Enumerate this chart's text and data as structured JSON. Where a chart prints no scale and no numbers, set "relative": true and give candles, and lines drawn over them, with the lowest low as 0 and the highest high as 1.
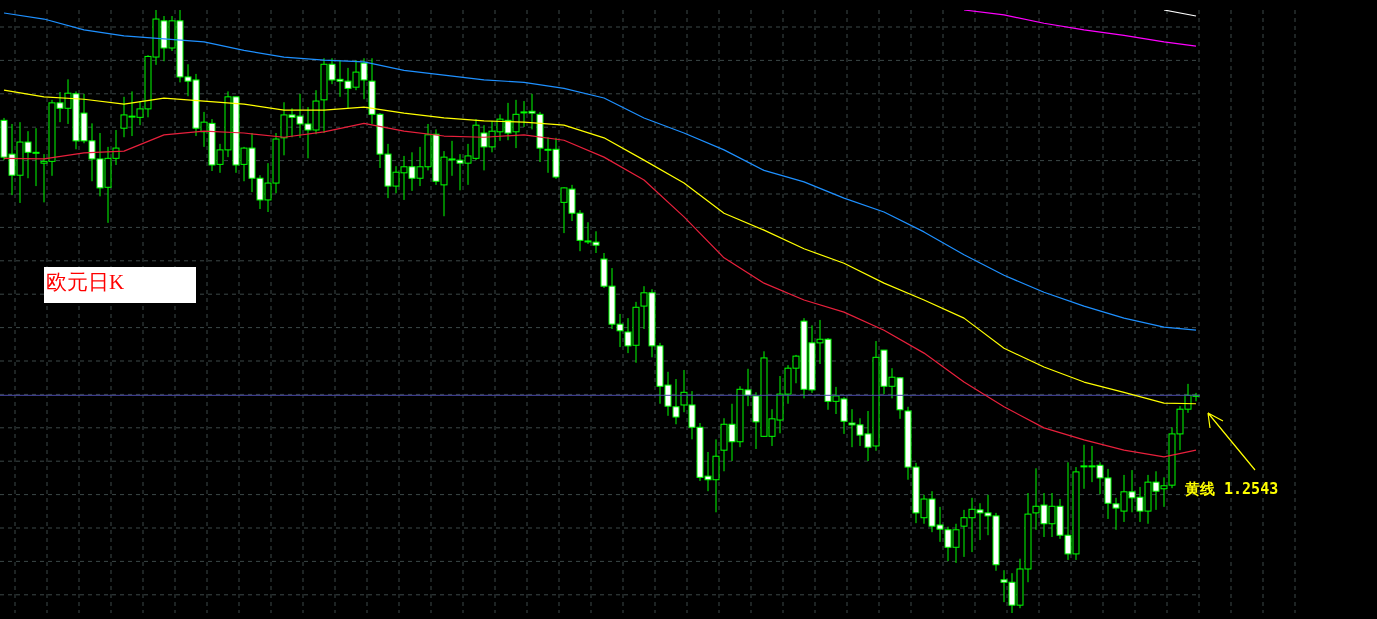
{
  "chart_data": {
    "type": "candlestick",
    "relative": true,
    "grid": true,
    "color": "#00ff00",
    "categories": [
      null,
      null,
      null,
      null,
      null,
      null,
      null,
      null,
      null,
      null,
      null,
      null,
      null,
      null,
      null,
      null,
      null,
      null,
      null,
      null,
      null,
      null,
      null,
      null,
      null,
      null,
      null,
      null,
      null,
      null,
      null,
      null,
      null,
      null,
      null,
      null,
      null,
      null,
      null,
      null,
      null,
      null,
      null,
      null,
      null,
      null,
      null,
      null,
      null,
      null,
      null,
      null,
      null,
      null,
      null,
      null,
      null,
      null,
      null,
      null,
      null,
      null,
      null,
      null,
      null,
      null,
      null,
      null,
      null,
      null,
      null,
      null,
      null,
      null,
      null,
      null,
      null,
      null,
      null,
      null,
      null,
      null,
      null,
      null,
      null,
      null,
      null,
      null,
      null,
      null,
      null,
      null,
      null,
      null,
      null,
      null,
      null,
      null,
      null,
      null,
      null,
      null,
      null,
      null,
      null,
      null,
      null,
      null,
      null,
      null,
      null,
      null,
      null,
      null,
      null,
      null,
      null,
      null,
      null,
      null,
      null,
      null,
      null,
      null,
      null,
      null,
      null,
      null,
      null,
      null,
      null,
      null,
      null,
      null,
      null,
      null,
      null,
      null,
      null,
      null,
      null,
      null,
      null,
      null,
      null,
      null,
      null,
      null,
      null,
      null
    ],
    "ohlc": [
      [
        0.817,
        0.821,
        0.751,
        0.756
      ],
      [
        0.761,
        0.811,
        0.693,
        0.726
      ],
      [
        0.726,
        0.814,
        0.68,
        0.781
      ],
      [
        0.781,
        0.799,
        0.721,
        0.764
      ],
      [
        0.764,
        0.804,
        0.708,
        0.764
      ],
      [
        0.746,
        0.761,
        0.681,
        0.749
      ],
      [
        0.749,
        0.851,
        0.725,
        0.846
      ],
      [
        0.846,
        0.864,
        0.814,
        0.837
      ],
      [
        0.837,
        0.885,
        0.811,
        0.862
      ],
      [
        0.861,
        0.865,
        0.769,
        0.783
      ],
      [
        0.829,
        0.861,
        0.779,
        0.783
      ],
      [
        0.783,
        0.812,
        0.716,
        0.753
      ],
      [
        0.753,
        0.796,
        0.691,
        0.705
      ],
      [
        0.706,
        0.773,
        0.647,
        0.754
      ],
      [
        0.754,
        0.801,
        0.743,
        0.771
      ],
      [
        0.804,
        0.856,
        0.789,
        0.826
      ],
      [
        0.824,
        0.865,
        0.791,
        0.824
      ],
      [
        0.822,
        0.849,
        0.809,
        0.836
      ],
      [
        0.836,
        0.925,
        0.822,
        0.923
      ],
      [
        0.922,
        1,
        0.909,
        0.985
      ],
      [
        0.982,
        0.99,
        0.915,
        0.937
      ],
      [
        0.937,
        0.99,
        0.932,
        0.982
      ],
      [
        0.982,
        1,
        0.88,
        0.889
      ],
      [
        0.889,
        0.91,
        0.857,
        0.882
      ],
      [
        0.884,
        0.894,
        0.791,
        0.804
      ],
      [
        0.798,
        0.831,
        0.773,
        0.814
      ],
      [
        0.812,
        0.819,
        0.733,
        0.743
      ],
      [
        0.744,
        0.778,
        0.73,
        0.768
      ],
      [
        0.768,
        0.865,
        0.756,
        0.856
      ],
      [
        0.856,
        0.856,
        0.73,
        0.743
      ],
      [
        0.744,
        0.773,
        0.716,
        0.771
      ],
      [
        0.771,
        0.796,
        0.698,
        0.721
      ],
      [
        0.721,
        0.726,
        0.67,
        0.685
      ],
      [
        0.685,
        0.746,
        0.665,
        0.713
      ],
      [
        0.713,
        0.796,
        0.696,
        0.786
      ],
      [
        0.788,
        0.847,
        0.759,
        0.826
      ],
      [
        0.826,
        0.837,
        0.789,
        0.822
      ],
      [
        0.824,
        0.861,
        0.788,
        0.811
      ],
      [
        0.811,
        0.839,
        0.754,
        0.801
      ],
      [
        0.801,
        0.867,
        0.794,
        0.849
      ],
      [
        0.851,
        0.92,
        0.796,
        0.91
      ],
      [
        0.91,
        0.92,
        0.877,
        0.884
      ],
      [
        0.885,
        0.917,
        0.856,
        0.882
      ],
      [
        0.882,
        0.904,
        0.837,
        0.87
      ],
      [
        0.872,
        0.917,
        0.867,
        0.897
      ],
      [
        0.912,
        0.92,
        0.852,
        0.884
      ],
      [
        0.882,
        0.92,
        0.811,
        0.827
      ],
      [
        0.827,
        0.829,
        0.738,
        0.761
      ],
      [
        0.761,
        0.778,
        0.688,
        0.708
      ],
      [
        0.708,
        0.741,
        0.696,
        0.731
      ],
      [
        0.73,
        0.758,
        0.685,
        0.74
      ],
      [
        0.74,
        0.764,
        0.7,
        0.721
      ],
      [
        0.721,
        0.773,
        0.708,
        0.74
      ],
      [
        0.74,
        0.811,
        0.734,
        0.793
      ],
      [
        0.794,
        0.802,
        0.71,
        0.716
      ],
      [
        0.71,
        0.766,
        0.658,
        0.756
      ],
      [
        0.753,
        0.783,
        0.725,
        0.753
      ],
      [
        0.751,
        0.761,
        0.701,
        0.746
      ],
      [
        0.746,
        0.778,
        0.71,
        0.758
      ],
      [
        0.754,
        0.819,
        0.751,
        0.809
      ],
      [
        0.796,
        0.809,
        0.734,
        0.773
      ],
      [
        0.773,
        0.816,
        0.764,
        0.799
      ],
      [
        0.798,
        0.827,
        0.783,
        0.819
      ],
      [
        0.817,
        0.846,
        0.784,
        0.796
      ],
      [
        0.798,
        0.851,
        0.771,
        0.827
      ],
      [
        0.831,
        0.849,
        0.806,
        0.831
      ],
      [
        0.832,
        0.861,
        0.802,
        0.829
      ],
      [
        0.827,
        0.831,
        0.748,
        0.771
      ],
      [
        0.769,
        0.789,
        0.73,
        0.769
      ],
      [
        0.769,
        0.788,
        0.72,
        0.723
      ],
      [
        0.681,
        0.706,
        0.63,
        0.705
      ],
      [
        0.703,
        0.71,
        0.65,
        0.663
      ],
      [
        0.663,
        0.668,
        0.6,
        0.618
      ],
      [
        0.617,
        0.648,
        0.612,
        0.617
      ],
      [
        0.615,
        0.633,
        0.597,
        0.61
      ],
      [
        0.587,
        0.597,
        0.539,
        0.542
      ],
      [
        0.542,
        0.572,
        0.471,
        0.479
      ],
      [
        0.479,
        0.496,
        0.441,
        0.468
      ],
      [
        0.466,
        0.489,
        0.431,
        0.443
      ],
      [
        0.444,
        0.516,
        0.415,
        0.507
      ],
      [
        0.509,
        0.542,
        0.471,
        0.531
      ],
      [
        0.531,
        0.537,
        0.424,
        0.443
      ],
      [
        0.443,
        0.448,
        0.347,
        0.376
      ],
      [
        0.378,
        0.4,
        0.327,
        0.343
      ],
      [
        0.342,
        0.388,
        0.313,
        0.325
      ],
      [
        0.345,
        0.403,
        0.333,
        0.366
      ],
      [
        0.345,
        0.368,
        0.288,
        0.308
      ],
      [
        0.308,
        0.315,
        0.219,
        0.225
      ],
      [
        0.227,
        0.267,
        0.202,
        0.221
      ],
      [
        0.221,
        0.288,
        0.167,
        0.26
      ],
      [
        0.27,
        0.323,
        0.235,
        0.313
      ],
      [
        0.313,
        0.347,
        0.252,
        0.284
      ],
      [
        0.284,
        0.376,
        0.275,
        0.371
      ],
      [
        0.37,
        0.405,
        0.343,
        0.361
      ],
      [
        0.36,
        0.366,
        0.272,
        0.317
      ],
      [
        0.293,
        0.434,
        0.292,
        0.423
      ],
      [
        0.293,
        0.338,
        0.277,
        0.322
      ],
      [
        0.32,
        0.393,
        0.298,
        0.363
      ],
      [
        0.363,
        0.411,
        0.347,
        0.406
      ],
      [
        0.406,
        0.428,
        0.381,
        0.426
      ],
      [
        0.484,
        0.489,
        0.356,
        0.371
      ],
      [
        0.448,
        0.477,
        0.365,
        0.37
      ],
      [
        0.448,
        0.486,
        0.413,
        0.454
      ],
      [
        0.454,
        0.456,
        0.337,
        0.351
      ],
      [
        0.351,
        0.375,
        0.33,
        0.36
      ],
      [
        0.355,
        0.358,
        0.297,
        0.318
      ],
      [
        0.315,
        0.338,
        0.275,
        0.312
      ],
      [
        0.312,
        0.323,
        0.277,
        0.295
      ],
      [
        0.297,
        0.335,
        0.252,
        0.275
      ],
      [
        0.277,
        0.451,
        0.269,
        0.424
      ],
      [
        0.436,
        0.436,
        0.363,
        0.376
      ],
      [
        0.376,
        0.406,
        0.356,
        0.391
      ],
      [
        0.39,
        0.391,
        0.322,
        0.337
      ],
      [
        0.335,
        0.342,
        0.221,
        0.242
      ],
      [
        0.242,
        0.249,
        0.149,
        0.166
      ],
      [
        0.158,
        0.196,
        0.148,
        0.189
      ],
      [
        0.189,
        0.202,
        0.134,
        0.144
      ],
      [
        0.146,
        0.176,
        0.118,
        0.139
      ],
      [
        0.138,
        0.143,
        0.086,
        0.109
      ],
      [
        0.109,
        0.148,
        0.083,
        0.138
      ],
      [
        0.144,
        0.171,
        0.093,
        0.158
      ],
      [
        0.158,
        0.191,
        0.101,
        0.172
      ],
      [
        0.171,
        0.182,
        0.121,
        0.166
      ],
      [
        0.166,
        0.196,
        0.129,
        0.161
      ],
      [
        0.161,
        0.166,
        0.07,
        0.08
      ],
      [
        0.055,
        0.071,
        0.018,
        0.051
      ],
      [
        0.051,
        0.066,
        0,
        0.013
      ],
      [
        0.013,
        0.09,
        0.008,
        0.073
      ],
      [
        0.073,
        0.199,
        0.051,
        0.164
      ],
      [
        0.166,
        0.24,
        0.138,
        0.177
      ],
      [
        0.179,
        0.199,
        0.126,
        0.148
      ],
      [
        0.148,
        0.199,
        0.126,
        0.177
      ],
      [
        0.177,
        0.189,
        0.123,
        0.129
      ],
      [
        0.129,
        0.25,
        0.088,
        0.098
      ],
      [
        0.098,
        0.242,
        0.088,
        0.234
      ],
      [
        0.244,
        0.279,
        0.206,
        0.244
      ],
      [
        0.244,
        0.277,
        0.217,
        0.244
      ],
      [
        0.245,
        0.25,
        0.197,
        0.224
      ],
      [
        0.224,
        0.239,
        0.156,
        0.182
      ],
      [
        0.181,
        0.191,
        0.138,
        0.174
      ],
      [
        0.169,
        0.229,
        0.151,
        0.201
      ],
      [
        0.201,
        0.237,
        0.167,
        0.191
      ],
      [
        0.192,
        0.209,
        0.151,
        0.169
      ],
      [
        0.169,
        0.229,
        0.148,
        0.217
      ],
      [
        0.217,
        0.235,
        0.171,
        0.202
      ],
      [
        0.206,
        0.225,
        0.176,
        0.211
      ],
      [
        0.212,
        0.308,
        0.207,
        0.297
      ],
      [
        0.297,
        0.343,
        0.27,
        0.338
      ],
      [
        0.338,
        0.38,
        0.332,
        0.361
      ],
      [
        0.361,
        0.365,
        0.351,
        0.361
      ]
    ],
    "series": [
      {
        "type": "line",
        "color": "#ffff00",
        "values": [
          0.867,
          null,
          null,
          null,
          null,
          0.856,
          null,
          null,
          null,
          null,
          0.852,
          null,
          null,
          null,
          null,
          0.844,
          null,
          null,
          null,
          null,
          0.854,
          null,
          null,
          null,
          null,
          0.849,
          null,
          null,
          null,
          null,
          0.844,
          null,
          null,
          null,
          null,
          0.834,
          null,
          null,
          null,
          null,
          0.834,
          null,
          null,
          null,
          null,
          0.839,
          null,
          null,
          null,
          null,
          0.829,
          null,
          null,
          null,
          null,
          0.821,
          null,
          null,
          null,
          null,
          0.816,
          null,
          null,
          null,
          null,
          0.814,
          null,
          null,
          null,
          null,
          0.809,
          null,
          null,
          null,
          null,
          0.788,
          null,
          null,
          null,
          null,
          0.751,
          null,
          null,
          null,
          null,
          0.713,
          null,
          null,
          null,
          null,
          0.663,
          null,
          null,
          null,
          null,
          0.635,
          null,
          null,
          null,
          null,
          0.604,
          null,
          null,
          null,
          null,
          0.58,
          null,
          null,
          null,
          null,
          0.547,
          null,
          null,
          null,
          null,
          0.519,
          null,
          null,
          null,
          null,
          0.489,
          null,
          null,
          null,
          null,
          0.439,
          null,
          null,
          null,
          null,
          0.408,
          null,
          null,
          null,
          null,
          0.383,
          null,
          null,
          null,
          null,
          0.366,
          null,
          null,
          null,
          null,
          0.348,
          null,
          null,
          null,
          0.347
        ]
      },
      {
        "type": "line",
        "color": "#e8203c",
        "values": [
          0.754,
          null,
          null,
          null,
          null,
          0.753,
          null,
          null,
          null,
          null,
          0.763,
          null,
          null,
          null,
          null,
          0.766,
          null,
          null,
          null,
          null,
          0.793,
          null,
          null,
          null,
          null,
          0.799,
          null,
          null,
          null,
          null,
          0.796,
          null,
          null,
          null,
          null,
          0.789,
          null,
          null,
          null,
          null,
          0.798,
          null,
          null,
          null,
          null,
          0.812,
          null,
          null,
          null,
          null,
          0.799,
          null,
          null,
          null,
          null,
          0.791,
          null,
          null,
          null,
          null,
          0.789,
          null,
          null,
          null,
          null,
          0.793,
          null,
          null,
          null,
          null,
          0.784,
          null,
          null,
          null,
          null,
          0.756,
          null,
          null,
          null,
          null,
          0.718,
          null,
          null,
          null,
          null,
          0.657,
          null,
          null,
          null,
          null,
          0.589,
          null,
          null,
          null,
          null,
          0.547,
          null,
          null,
          null,
          null,
          0.519,
          null,
          null,
          null,
          null,
          0.499,
          null,
          null,
          null,
          null,
          0.469,
          null,
          null,
          null,
          null,
          0.431,
          null,
          null,
          null,
          null,
          0.383,
          null,
          null,
          null,
          null,
          0.342,
          null,
          null,
          null,
          null,
          0.307,
          null,
          null,
          null,
          null,
          0.287,
          null,
          null,
          null,
          null,
          0.27,
          null,
          null,
          null,
          null,
          0.259,
          null,
          null,
          null,
          0.27
        ]
      },
      {
        "type": "line",
        "color": "#1e90ff",
        "values": [
          0.995,
          null,
          null,
          null,
          null,
          0.985,
          null,
          null,
          null,
          null,
          0.967,
          null,
          null,
          null,
          null,
          0.957,
          null,
          null,
          null,
          null,
          0.952,
          null,
          null,
          null,
          null,
          0.947,
          null,
          null,
          null,
          null,
          0.933,
          null,
          null,
          null,
          null,
          0.922,
          null,
          null,
          null,
          null,
          0.917,
          null,
          null,
          null,
          null,
          0.914,
          null,
          null,
          null,
          null,
          0.9,
          null,
          null,
          null,
          null,
          0.892,
          null,
          null,
          null,
          null,
          0.884,
          null,
          null,
          null,
          null,
          0.88,
          null,
          null,
          null,
          null,
          0.87,
          null,
          null,
          null,
          null,
          0.854,
          null,
          null,
          null,
          null,
          0.821,
          null,
          null,
          null,
          null,
          0.796,
          null,
          null,
          null,
          null,
          0.768,
          null,
          null,
          null,
          null,
          0.734,
          null,
          null,
          null,
          null,
          0.715,
          null,
          null,
          null,
          null,
          0.688,
          null,
          null,
          null,
          null,
          0.665,
          null,
          null,
          null,
          null,
          0.632,
          null,
          null,
          null,
          null,
          0.594,
          null,
          null,
          null,
          null,
          0.56,
          null,
          null,
          null,
          null,
          0.532,
          null,
          null,
          null,
          null,
          0.509,
          null,
          null,
          null,
          null,
          0.489,
          null,
          null,
          null,
          null,
          0.474,
          null,
          null,
          null,
          0.469
        ]
      },
      {
        "type": "line",
        "color": "#ff00ff",
        "values": [
          null,
          null,
          null,
          null,
          null,
          null,
          null,
          null,
          null,
          null,
          null,
          null,
          null,
          null,
          null,
          null,
          null,
          null,
          null,
          null,
          null,
          null,
          null,
          null,
          null,
          null,
          null,
          null,
          null,
          null,
          null,
          null,
          null,
          null,
          null,
          null,
          null,
          null,
          null,
          null,
          null,
          null,
          null,
          null,
          null,
          null,
          null,
          null,
          null,
          null,
          null,
          null,
          null,
          null,
          null,
          null,
          null,
          null,
          null,
          null,
          null,
          null,
          null,
          null,
          null,
          null,
          null,
          null,
          null,
          null,
          null,
          null,
          null,
          null,
          null,
          null,
          null,
          null,
          null,
          null,
          null,
          null,
          null,
          null,
          null,
          null,
          null,
          null,
          null,
          null,
          null,
          null,
          null,
          null,
          null,
          null,
          null,
          null,
          null,
          null,
          null,
          null,
          null,
          null,
          null,
          null,
          null,
          null,
          null,
          null,
          null,
          null,
          null,
          null,
          null,
          null,
          null,
          null,
          null,
          null,
          1,
          null,
          null,
          null,
          null,
          0.992,
          null,
          null,
          null,
          null,
          0.978,
          null,
          null,
          null,
          null,
          0.967,
          null,
          null,
          null,
          null,
          0.958,
          null,
          null,
          null,
          null,
          0.947,
          null,
          null,
          null,
          0.94
        ]
      },
      {
        "type": "line",
        "color": "#ffffff",
        "values": [
          null,
          null,
          null,
          null,
          null,
          null,
          null,
          null,
          null,
          null,
          null,
          null,
          null,
          null,
          null,
          null,
          null,
          null,
          null,
          null,
          null,
          null,
          null,
          null,
          null,
          null,
          null,
          null,
          null,
          null,
          null,
          null,
          null,
          null,
          null,
          null,
          null,
          null,
          null,
          null,
          null,
          null,
          null,
          null,
          null,
          null,
          null,
          null,
          null,
          null,
          null,
          null,
          null,
          null,
          null,
          null,
          null,
          null,
          null,
          null,
          null,
          null,
          null,
          null,
          null,
          null,
          null,
          null,
          null,
          null,
          null,
          null,
          null,
          null,
          null,
          null,
          null,
          null,
          null,
          null,
          null,
          null,
          null,
          null,
          null,
          null,
          null,
          null,
          null,
          null,
          null,
          null,
          null,
          null,
          null,
          null,
          null,
          null,
          null,
          null,
          null,
          null,
          null,
          null,
          null,
          null,
          null,
          null,
          null,
          null,
          null,
          null,
          null,
          null,
          null,
          null,
          null,
          null,
          null,
          null,
          null,
          null,
          null,
          null,
          null,
          null,
          null,
          null,
          null,
          null,
          null,
          null,
          null,
          null,
          null,
          null,
          null,
          null,
          null,
          null,
          null,
          null,
          null,
          null,
          null,
          1,
          null,
          null,
          null,
          0.99
        ]
      }
    ],
    "ref_lines": [
      {
        "axis": "y",
        "value": 0.361,
        "color": "#4a4aa8"
      }
    ],
    "annotations": [
      "欧元日K",
      "黄线 1.2543"
    ]
  }
}
